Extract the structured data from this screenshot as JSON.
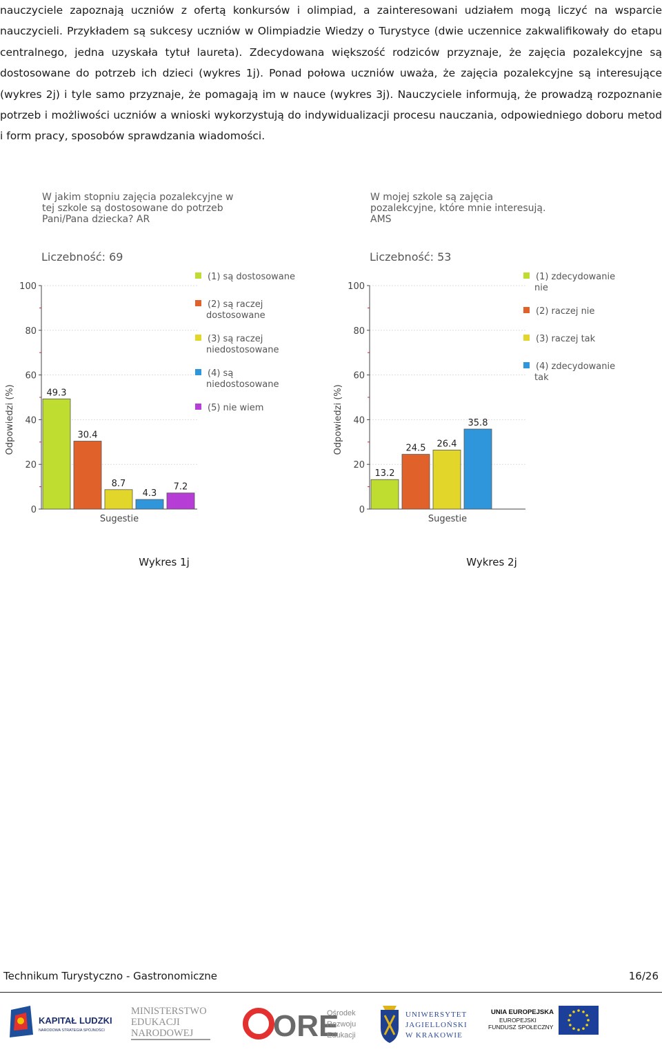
{
  "paragraph": "nauczyciele zapoznają uczniów z ofertą konkursów i olimpiad, a zainteresowani udziałem mogą liczyć na wsparcie nauczycieli. Przykładem są sukcesy uczniów w Olimpiadzie Wiedzy o Turystyce (dwie uczennice zakwalifikowały do etapu centralnego, jedna uzyskała tytuł laureta). Zdecydowana większość rodziców przyznaje, że zajęcia pozalekcyjne są dostosowane do potrzeb ich dzieci (wykres 1j). Ponad połowa uczniów uważa, że zajęcia pozalekcyjne są interesujące (wykres 2j) i tyle samo przyznaje, że pomagają im w nauce (wykres 3j). Nauczyciele informują, że prowadzą rozpoznanie potrzeb i możliwości uczniów a wnioski wykorzystują do indywidualizacji procesu nauczania, odpowiedniego doboru metod i form pracy, sposobów sprawdzania wiadomości.",
  "chart_data": [
    {
      "type": "bar",
      "title": [
        "W jakim stopniu zajęcia pozalekcyjne w",
        "tej szkole są dostosowane do potrzeb",
        "Pani/Pana dziecka? AR"
      ],
      "count_label": "Liczebność: 69",
      "categories": [
        [
          "(1) są dostosowane"
        ],
        [
          "(2) są raczej",
          "dostosowane"
        ],
        [
          "(3) są raczej",
          "niedostosowane"
        ],
        [
          "(4) są",
          "niedostosowane"
        ],
        [
          "(5) nie wiem"
        ]
      ],
      "values": [
        49.3,
        30.4,
        8.7,
        4.3,
        7.2
      ],
      "value_labels": [
        "49.3",
        "30.4",
        "8.7",
        "4.3",
        "7.2"
      ],
      "colors": [
        "#bfdc31",
        "#e0622a",
        "#e3d62b",
        "#2f96dc",
        "#b63ed6"
      ],
      "xlabel": "Sugestie",
      "ylabel": "Odpowiedzi (%)",
      "ylim": [
        0,
        100
      ],
      "yticks": [
        "0",
        "20",
        "40",
        "60",
        "80",
        "100"
      ],
      "grid": true,
      "legend": "right",
      "caption": "Wykres 1j"
    },
    {
      "type": "bar",
      "title": [
        "W mojej szkole są zajęcia",
        "pozalekcyjne, które mnie interesują.",
        "AMS"
      ],
      "count_label": "Liczebność: 53",
      "categories": [
        [
          "(1) zdecydowanie",
          "nie"
        ],
        [
          "(2) raczej nie"
        ],
        [
          "(3) raczej tak"
        ],
        [
          "(4) zdecydowanie",
          "tak"
        ]
      ],
      "values": [
        13.2,
        24.5,
        26.4,
        35.8
      ],
      "value_labels": [
        "13.2",
        "24.5",
        "26.4",
        "35.8"
      ],
      "colors": [
        "#bfdc31",
        "#e0622a",
        "#e3d62b",
        "#2f96dc"
      ],
      "xlabel": "Sugestie",
      "ylabel": "Odpowiedzi (%)",
      "ylim": [
        0,
        100
      ],
      "yticks": [
        "0",
        "20",
        "40",
        "60",
        "80",
        "100"
      ],
      "grid": true,
      "legend": "right",
      "caption": "Wykres 2j"
    }
  ],
  "footer": {
    "school": "Technikum Turystyczno - Gastronomiczne",
    "page": "16/26"
  },
  "logos": {
    "kapital": {
      "title": "KAPITAŁ LUDZKI",
      "subtitle": "NARODOWA STRATEGIA SPÓJNOŚCI"
    },
    "men": {
      "line1": "MINISTERSTWO",
      "line2": "EDUKACJI",
      "line3": "NARODOWEJ"
    },
    "ore": {
      "mark": "ORE",
      "line1": "Ośrodek",
      "line2": "Rozwoju",
      "line3": "Edukacji"
    },
    "uj": {
      "line1": "UNIWERSYTET",
      "line2": "JAGIELLOŃSKI",
      "line3": "W KRAKOWIE"
    },
    "ue": {
      "line1": "UNIA EUROPEJSKA",
      "line2": "EUROPEJSKI",
      "line3": "FUNDUSZ SPOŁECZNY"
    }
  }
}
